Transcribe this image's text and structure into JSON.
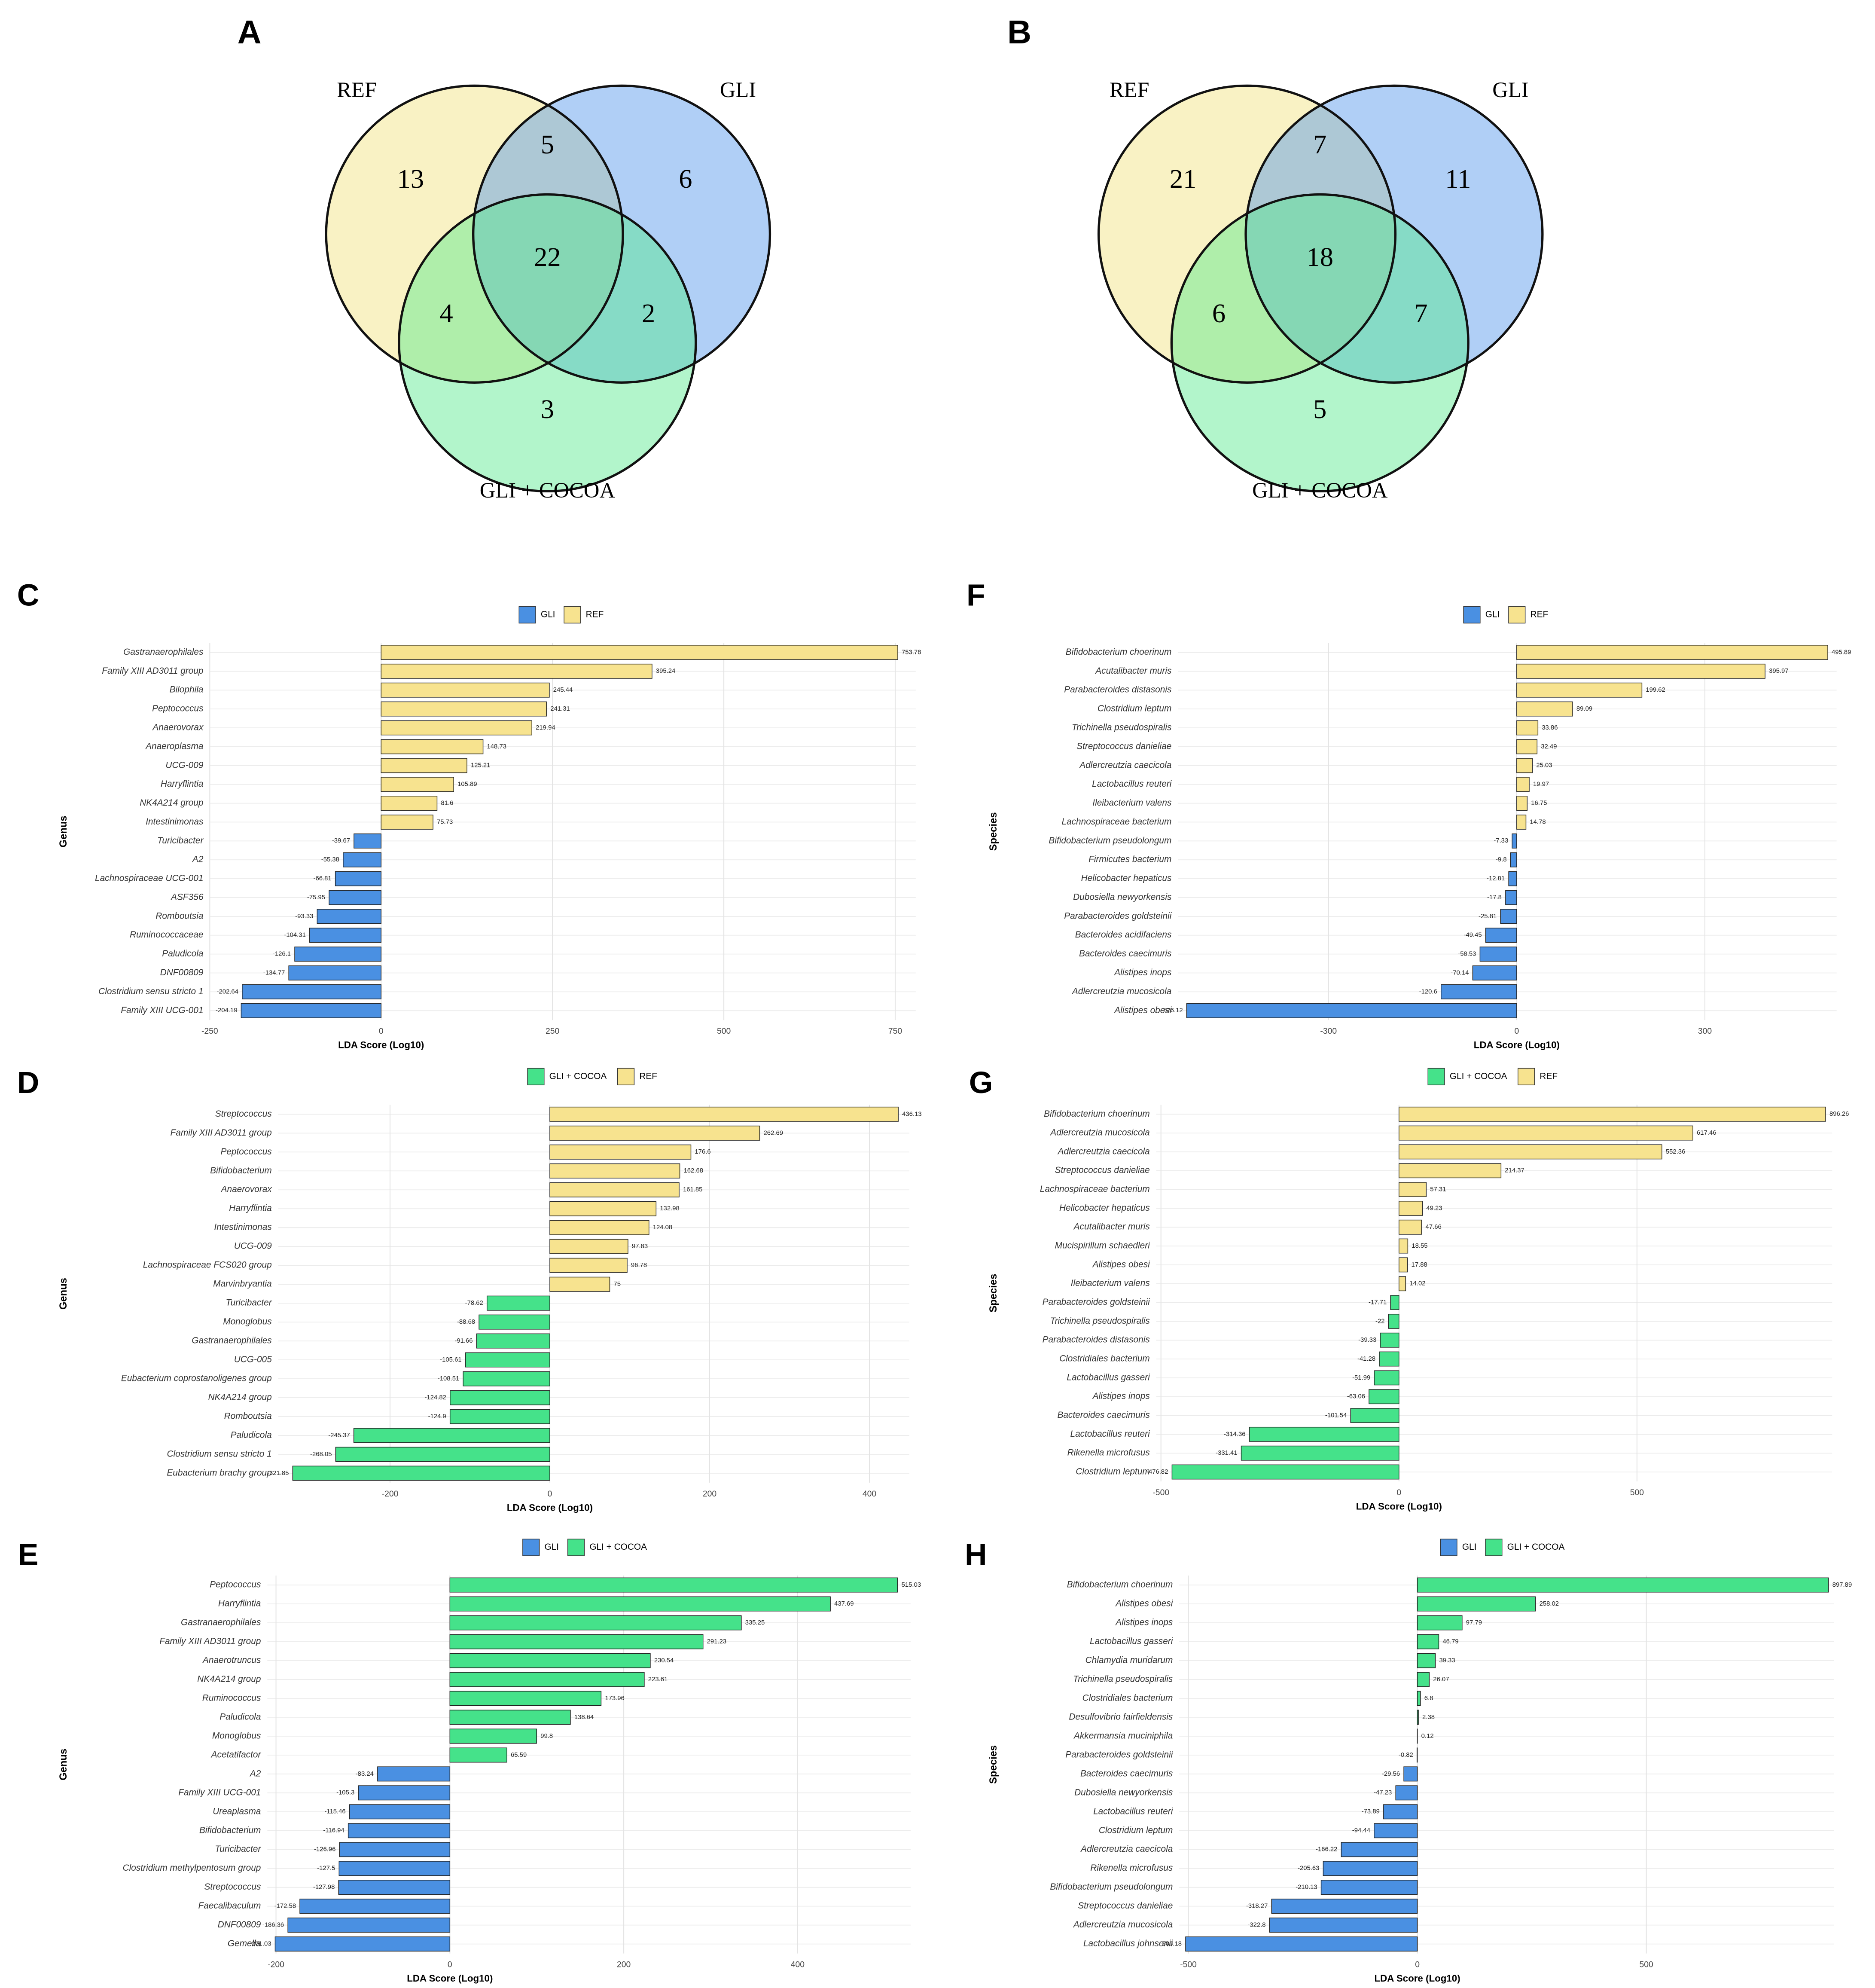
{
  "chart_data": [
    {
      "type": "venn",
      "panel": "A",
      "sets": [
        {
          "name": "REF",
          "color": "#f2e27c"
        },
        {
          "name": "GLI",
          "color": "#4f95ea"
        },
        {
          "name": "GLI + COCOA",
          "color": "#55e88c"
        }
      ],
      "regions": [
        {
          "sets": [
            0
          ],
          "value": 13
        },
        {
          "sets": [
            1
          ],
          "value": 6
        },
        {
          "sets": [
            2
          ],
          "value": 3
        },
        {
          "sets": [
            0,
            1
          ],
          "value": 5
        },
        {
          "sets": [
            0,
            2
          ],
          "value": 4
        },
        {
          "sets": [
            1,
            2
          ],
          "value": 2
        },
        {
          "sets": [
            0,
            1,
            2
          ],
          "value": 22
        }
      ]
    },
    {
      "type": "venn",
      "panel": "B",
      "sets": [
        {
          "name": "REF",
          "color": "#f2e27c"
        },
        {
          "name": "GLI",
          "color": "#4f95ea"
        },
        {
          "name": "GLI + COCOA",
          "color": "#55e88c"
        }
      ],
      "regions": [
        {
          "sets": [
            0
          ],
          "value": 21
        },
        {
          "sets": [
            1
          ],
          "value": 11
        },
        {
          "sets": [
            2
          ],
          "value": 5
        },
        {
          "sets": [
            0,
            1
          ],
          "value": 7
        },
        {
          "sets": [
            0,
            2
          ],
          "value": 6
        },
        {
          "sets": [
            1,
            2
          ],
          "value": 7
        },
        {
          "sets": [
            0,
            1,
            2
          ],
          "value": 18
        }
      ]
    },
    {
      "type": "bar",
      "panel": "C",
      "ylabel": "Genus",
      "xlabel": "LDA Score (Log10)",
      "legend": [
        {
          "name": "GLI",
          "color": "#4a90e2"
        },
        {
          "name": "REF",
          "color": "#f7e38f"
        }
      ],
      "categories": [
        "Gastranaerophilales",
        "Family XIII AD3011 group",
        "Bilophila",
        "Peptococcus",
        "Anaerovorax",
        "Anaeroplasma",
        "UCG-009",
        "Harryflintia",
        "NK4A214 group",
        "Intestinimonas",
        "Turicibacter",
        "A2",
        "Lachnospiraceae UCG-001",
        "ASF356",
        "Romboutsia",
        "Ruminococcaceae",
        "Paludicola",
        "DNF00809",
        "Clostridium sensu stricto 1",
        "Family XIII UCG-001"
      ],
      "values": [
        753.78,
        395.24,
        245.44,
        241.31,
        219.94,
        148.73,
        125.21,
        105.89,
        81.6,
        75.73,
        -39.67,
        -55.38,
        -66.81,
        -75.95,
        -93.33,
        -104.31,
        -126.1,
        -134.77,
        -202.64,
        -204.19
      ],
      "xlim": [
        -250,
        780
      ],
      "xticks": [
        -250,
        0,
        250,
        500,
        750
      ],
      "grid": true
    },
    {
      "type": "bar",
      "panel": "D",
      "ylabel": "Genus",
      "xlabel": "LDA Score (Log10)",
      "legend": [
        {
          "name": "GLI + COCOA",
          "color": "#45e28a"
        },
        {
          "name": "REF",
          "color": "#f7e38f"
        }
      ],
      "categories": [
        "Streptococcus",
        "Family XIII AD3011 group",
        "Peptococcus",
        "Bifidobacterium",
        "Anaerovorax",
        "Harryflintia",
        "Intestinimonas",
        "UCG-009",
        "Lachnospiraceae FCS020 group",
        "Marvinbryantia",
        "Turicibacter",
        "Monoglobus",
        "Gastranaerophilales",
        "UCG-005",
        "Eubacterium coprostanoligenes group",
        "NK4A214 group",
        "Romboutsia",
        "Paludicola",
        "Clostridium sensu stricto 1",
        "Eubacterium brachy group"
      ],
      "values": [
        436.13,
        262.69,
        176.6,
        162.68,
        161.85,
        132.98,
        124.08,
        97.83,
        96.78,
        75,
        -78.62,
        -88.68,
        -91.66,
        -105.61,
        -108.51,
        -124.82,
        -124.9,
        -245.37,
        -268.05,
        -321.85
      ],
      "xlim": [
        -340,
        450
      ],
      "xticks": [
        -200,
        0,
        200,
        400
      ],
      "grid": true
    },
    {
      "type": "bar",
      "panel": "E",
      "ylabel": "Genus",
      "xlabel": "LDA Score (Log10)",
      "legend": [
        {
          "name": "GLI",
          "color": "#4a90e2"
        },
        {
          "name": "GLI + COCOA",
          "color": "#45e28a"
        }
      ],
      "categories": [
        "Peptococcus",
        "Harryflintia",
        "Gastranaerophilales",
        "Family XIII AD3011 group",
        "Anaerotruncus",
        "NK4A214 group",
        "Ruminococcus",
        "Paludicola",
        "Monoglobus",
        "Acetatifactor",
        "A2",
        "Family XIII UCG-001",
        "Ureaplasma",
        "Bifidobacterium",
        "Turicibacter",
        "Clostridium methylpentosum group",
        "Streptococcus",
        "Faecalibaculum",
        "DNF00809",
        "Gemella"
      ],
      "values": [
        515.03,
        437.69,
        335.25,
        291.23,
        230.54,
        223.61,
        173.96,
        138.64,
        99.8,
        65.59,
        -83.24,
        -105.3,
        -115.46,
        -116.94,
        -126.96,
        -127.5,
        -127.98,
        -172.58,
        -186.36,
        -201.03
      ],
      "xlim": [
        -210,
        530
      ],
      "xticks": [
        -200,
        0,
        200,
        400
      ],
      "grid": true
    },
    {
      "type": "bar",
      "panel": "F",
      "ylabel": "Species",
      "xlabel": "LDA Score (Log10)",
      "legend": [
        {
          "name": "GLI",
          "color": "#4a90e2"
        },
        {
          "name": "REF",
          "color": "#f7e38f"
        }
      ],
      "categories": [
        "Bifidobacterium choerinum",
        "Acutalibacter muris",
        "Parabacteroides distasonis",
        "Clostridium leptum",
        "Trichinella pseudospiralis",
        "Streptococcus danieliae",
        "Adlercreutzia caecicola",
        "Lactobacillus reuteri",
        "Ileibacterium valens",
        "Lachnospiraceae bacterium",
        "Bifidobacterium pseudolongum",
        "Firmicutes bacterium",
        "Helicobacter hepaticus",
        "Dubosiella newyorkensis",
        "Parabacteroides goldsteinii",
        "Bacteroides acidifaciens",
        "Bacteroides caecimuris",
        "Alistipes inops",
        "Adlercreutzia mucosicola",
        "Alistipes obesi"
      ],
      "values": [
        495.89,
        395.97,
        199.62,
        89.09,
        33.86,
        32.49,
        25.03,
        19.97,
        16.75,
        14.78,
        -7.33,
        -9.8,
        -12.81,
        -17.8,
        -25.81,
        -49.45,
        -58.53,
        -70.14,
        -120.6,
        -526.12
      ],
      "xlim": [
        -540,
        510
      ],
      "xticks": [
        -300,
        0,
        300
      ],
      "grid": true
    },
    {
      "type": "bar",
      "panel": "G",
      "ylabel": "Species",
      "xlabel": "LDA Score (Log10)",
      "legend": [
        {
          "name": "GLI + COCOA",
          "color": "#45e28a"
        },
        {
          "name": "REF",
          "color": "#f7e38f"
        }
      ],
      "categories": [
        "Bifidobacterium choerinum",
        "Adlercreutzia mucosicola",
        "Adlercreutzia caecicola",
        "Streptococcus danieliae",
        "Lachnospiraceae bacterium",
        "Helicobacter hepaticus",
        "Acutalibacter muris",
        "Mucispirillum schaedleri",
        "Alistipes obesi",
        "Ileibacterium valens",
        "Parabacteroides goldsteinii",
        "Trichinella pseudospiralis",
        "Parabacteroides distasonis",
        "Clostridiales bacterium",
        "Lactobacillus gasseri",
        "Alistipes inops",
        "Bacteroides caecimuris",
        "Lactobacillus reuteri",
        "Rikenella microfusus",
        "Clostridium leptum"
      ],
      "values": [
        896.26,
        617.46,
        552.36,
        214.37,
        57.31,
        49.23,
        47.66,
        18.55,
        17.88,
        14.02,
        -17.71,
        -22,
        -39.33,
        -41.28,
        -51.99,
        -63.06,
        -101.54,
        -314.36,
        -331.41,
        -476.82
      ],
      "xlim": [
        -510,
        910
      ],
      "xticks": [
        -500,
        0,
        500
      ],
      "grid": true
    },
    {
      "type": "bar",
      "panel": "H",
      "ylabel": "Species",
      "xlabel": "LDA Score (Log10)",
      "legend": [
        {
          "name": "GLI",
          "color": "#4a90e2"
        },
        {
          "name": "GLI + COCOA",
          "color": "#45e28a"
        }
      ],
      "categories": [
        "Bifidobacterium choerinum",
        "Alistipes obesi",
        "Alistipes inops",
        "Lactobacillus gasseri",
        "Chlamydia muridarum",
        "Trichinella pseudospiralis",
        "Clostridiales bacterium",
        "Desulfovibrio fairfieldensis",
        "Akkermansia muciniphila",
        "Parabacteroides goldsteinii",
        "Bacteroides caecimuris",
        "Dubosiella newyorkensis",
        "Lactobacillus reuteri",
        "Clostridium leptum",
        "Adlercreutzia caecicola",
        "Rikenella microfusus",
        "Bifidobacterium pseudolongum",
        "Streptococcus danieliae",
        "Adlercreutzia mucosicola",
        "Lactobacillus johnsonii"
      ],
      "values": [
        897.89,
        258.02,
        97.79,
        46.79,
        39.33,
        26.07,
        6.8,
        2.38,
        0.12,
        -0.82,
        -29.56,
        -47.23,
        -73.89,
        -94.44,
        -166.22,
        -205.63,
        -210.13,
        -318.27,
        -322.8,
        -506.18
      ],
      "xlim": [
        -520,
        910
      ],
      "xticks": [
        -500,
        0,
        500
      ],
      "grid": true
    }
  ]
}
